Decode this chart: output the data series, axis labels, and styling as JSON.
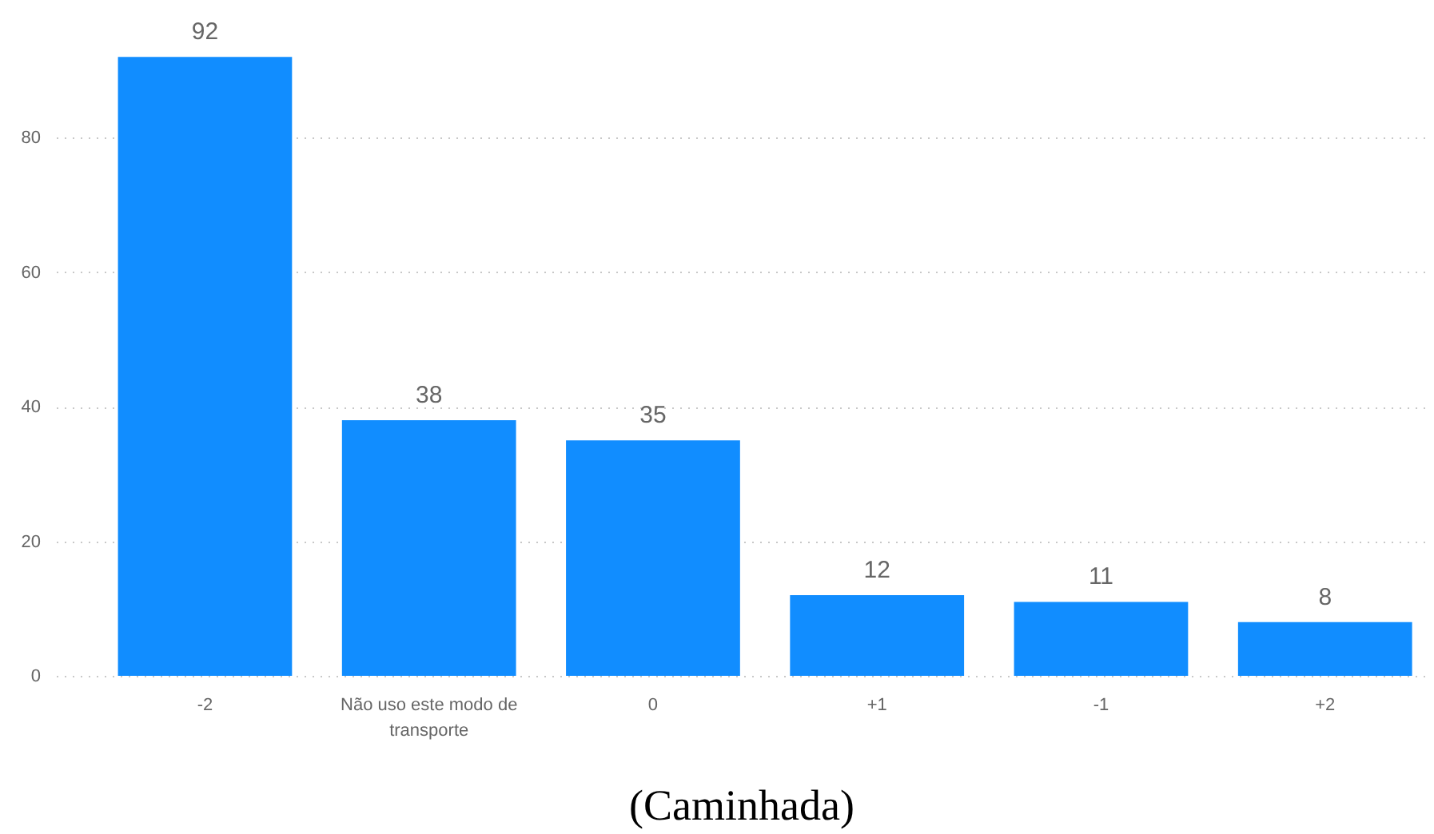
{
  "chart_data": {
    "type": "bar",
    "title": "(Caminhada)",
    "categories": [
      "-2",
      "Não uso este modo de transporte",
      "0",
      "+1",
      "-1",
      "+2"
    ],
    "values": [
      92,
      38,
      35,
      12,
      11,
      8
    ],
    "color": "#118dff",
    "ylim": [
      0,
      100
    ],
    "yticks": [
      0,
      20,
      40,
      60,
      80
    ],
    "grid": "y",
    "data_labels": true
  }
}
